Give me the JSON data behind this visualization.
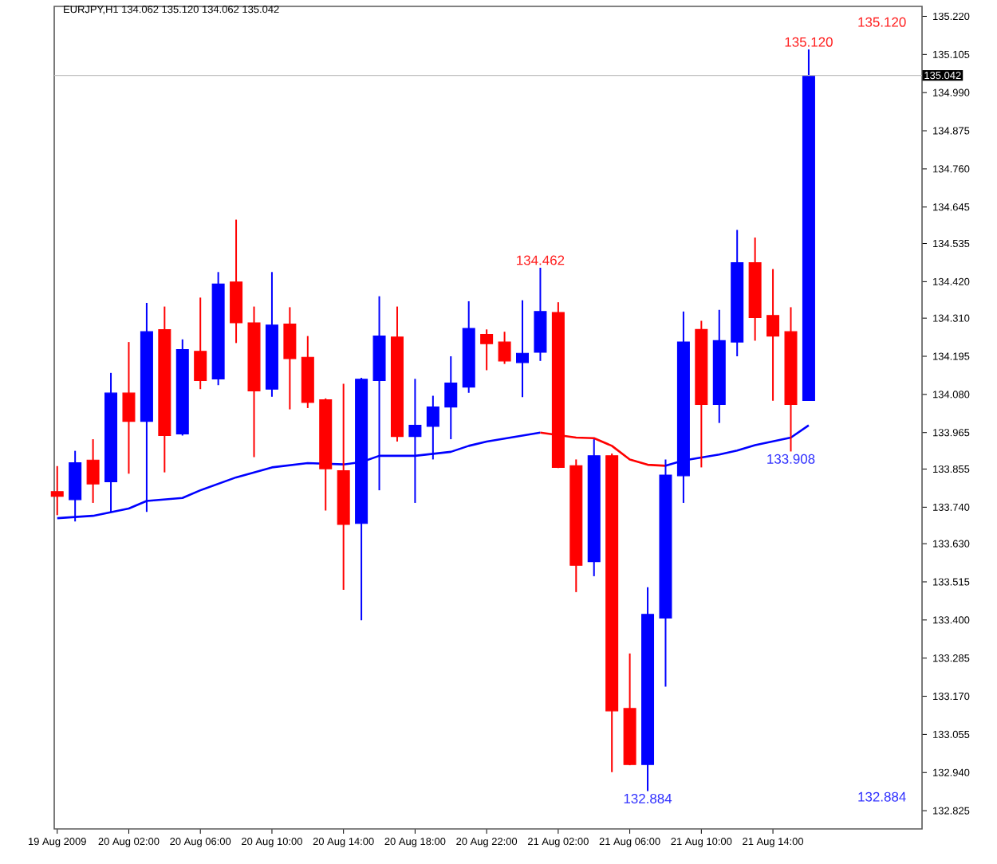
{
  "chart_data": {
    "type": "candlestick",
    "title": "EURJPY,H1  134.062 135.120 134.062 135.042",
    "x": [
      "2009-08-19T22:00",
      "2009-08-19T23:00",
      "2009-08-20T00:00",
      "2009-08-20T01:00",
      "2009-08-20T02:00",
      "2009-08-20T03:00",
      "2009-08-20T04:00",
      "2009-08-20T05:00",
      "2009-08-20T06:00",
      "2009-08-20T07:00",
      "2009-08-20T08:00",
      "2009-08-20T09:00",
      "2009-08-20T10:00",
      "2009-08-20T11:00",
      "2009-08-20T12:00",
      "2009-08-20T13:00",
      "2009-08-20T14:00",
      "2009-08-20T15:00",
      "2009-08-20T16:00",
      "2009-08-20T17:00",
      "2009-08-20T18:00",
      "2009-08-20T19:00",
      "2009-08-20T20:00",
      "2009-08-20T21:00",
      "2009-08-20T22:00",
      "2009-08-20T23:00",
      "2009-08-21T00:00",
      "2009-08-21T01:00",
      "2009-08-21T02:00",
      "2009-08-21T03:00",
      "2009-08-21T04:00",
      "2009-08-21T05:00",
      "2009-08-21T06:00",
      "2009-08-21T07:00",
      "2009-08-21T08:00",
      "2009-08-21T09:00",
      "2009-08-21T10:00",
      "2009-08-21T11:00",
      "2009-08-21T12:00",
      "2009-08-21T13:00",
      "2009-08-21T14:00",
      "2009-08-21T15:00",
      "2009-08-21T16:00"
    ],
    "ohlc": [
      [
        133.787,
        133.864,
        133.716,
        133.773
      ],
      [
        133.763,
        133.91,
        133.697,
        133.874
      ],
      [
        133.882,
        133.945,
        133.753,
        133.81
      ],
      [
        133.817,
        134.145,
        133.726,
        134.084
      ],
      [
        134.084,
        134.238,
        133.841,
        133.999
      ],
      [
        133.999,
        134.356,
        133.726,
        134.269
      ],
      [
        134.275,
        134.345,
        133.845,
        133.956
      ],
      [
        133.961,
        134.246,
        133.956,
        134.215
      ],
      [
        134.21,
        134.372,
        134.096,
        134.122
      ],
      [
        134.127,
        134.449,
        134.108,
        134.413
      ],
      [
        134.419,
        134.607,
        134.235,
        134.296
      ],
      [
        134.296,
        134.345,
        133.891,
        134.091
      ],
      [
        134.096,
        134.449,
        134.073,
        134.289
      ],
      [
        134.292,
        134.343,
        134.035,
        134.188
      ],
      [
        134.192,
        134.256,
        134.039,
        134.056
      ],
      [
        134.064,
        134.068,
        133.73,
        133.856
      ],
      [
        133.85,
        134.112,
        133.491,
        133.688
      ],
      [
        133.691,
        134.13,
        133.399,
        134.126
      ],
      [
        134.122,
        134.376,
        133.791,
        134.256
      ],
      [
        134.253,
        134.345,
        133.938,
        133.953
      ],
      [
        133.953,
        134.127,
        133.753,
        133.987
      ],
      [
        133.984,
        134.076,
        133.884,
        134.042
      ],
      [
        134.042,
        134.195,
        133.945,
        134.114
      ],
      [
        134.102,
        134.361,
        134.085,
        134.279
      ],
      [
        134.261,
        134.276,
        134.153,
        134.233
      ],
      [
        134.238,
        134.269,
        134.172,
        134.181
      ],
      [
        134.176,
        134.364,
        134.072,
        134.204
      ],
      [
        134.207,
        134.462,
        134.181,
        134.33
      ],
      [
        134.327,
        134.358,
        133.858,
        133.86
      ],
      [
        133.865,
        133.884,
        133.484,
        133.565
      ],
      [
        133.576,
        133.945,
        133.532,
        133.895
      ],
      [
        133.895,
        133.902,
        132.941,
        133.126
      ],
      [
        133.133,
        133.299,
        132.962,
        132.964
      ],
      [
        132.964,
        133.499,
        132.884,
        133.417
      ],
      [
        133.406,
        133.884,
        133.199,
        133.837
      ],
      [
        133.835,
        134.33,
        133.753,
        134.238
      ],
      [
        134.276,
        134.302,
        133.86,
        134.05
      ],
      [
        134.05,
        134.335,
        133.994,
        134.242
      ],
      [
        134.238,
        134.576,
        134.195,
        134.477
      ],
      [
        134.477,
        134.553,
        134.242,
        134.312
      ],
      [
        134.318,
        134.458,
        134.061,
        134.256
      ],
      [
        134.269,
        134.343,
        133.908,
        134.05
      ],
      [
        134.062,
        135.12,
        134.062,
        135.042
      ]
    ],
    "colors": [
      "#ff0000",
      "#0000ff",
      "#ff0000",
      "#0000ff",
      "#ff0000",
      "#0000ff",
      "#ff0000",
      "#0000ff",
      "#ff0000",
      "#0000ff",
      "#ff0000",
      "#ff0000",
      "#0000ff",
      "#ff0000",
      "#ff0000",
      "#ff0000",
      "#ff0000",
      "#0000ff",
      "#0000ff",
      "#ff0000",
      "#0000ff",
      "#0000ff",
      "#0000ff",
      "#0000ff",
      "#ff0000",
      "#ff0000",
      "#0000ff",
      "#0000ff",
      "#ff0000",
      "#ff0000",
      "#0000ff",
      "#ff0000",
      "#ff0000",
      "#0000ff",
      "#0000ff",
      "#0000ff",
      "#ff0000",
      "#0000ff",
      "#0000ff",
      "#ff0000",
      "#ff0000",
      "#ff0000",
      "#0000ff"
    ],
    "series": [
      {
        "type": "line",
        "color": "#0000ff",
        "x": [
          "2009-08-19T22:00",
          "2009-08-20T00:00",
          "2009-08-20T02:00",
          "2009-08-20T03:00",
          "2009-08-20T05:00",
          "2009-08-20T06:00",
          "2009-08-20T08:00",
          "2009-08-20T10:00",
          "2009-08-20T12:00",
          "2009-08-20T14:00",
          "2009-08-20T15:00",
          "2009-08-20T16:00",
          "2009-08-20T18:00",
          "2009-08-20T20:00",
          "2009-08-20T21:00",
          "2009-08-20T22:00",
          "2009-08-21T00:00",
          "2009-08-21T01:00",
          "2009-08-21T05:00",
          "2009-08-21T08:00",
          "2009-08-21T09:00",
          "2009-08-21T11:00",
          "2009-08-21T12:00",
          "2009-08-21T13:00",
          "2009-08-21T15:00",
          "2009-08-21T16:00"
        ],
        "values": [
          133.707,
          133.714,
          133.736,
          133.759,
          133.768,
          133.791,
          133.83,
          133.86,
          133.873,
          133.869,
          133.876,
          133.895,
          133.895,
          133.907,
          133.925,
          133.938,
          133.956,
          133.965,
          null,
          133.865,
          133.881,
          133.899,
          133.911,
          133.927,
          133.95,
          133.987
        ]
      },
      {
        "type": "line",
        "color": "#ff0000",
        "x": [
          "2009-08-21T01:00",
          "2009-08-21T03:00",
          "2009-08-21T04:00",
          "2009-08-21T05:00",
          "2009-08-21T06:00",
          "2009-08-21T07:00",
          "2009-08-21T08:00"
        ],
        "values": [
          133.965,
          133.95,
          133.948,
          133.925,
          133.884,
          133.868,
          133.865
        ]
      }
    ],
    "ref_lines": [
      {
        "axis": "y",
        "value": 135.042,
        "label": "135.042",
        "color": "#c0c0c0"
      }
    ],
    "annotations": [
      {
        "text": "134.462",
        "x": "2009-08-21T01:00",
        "y": 134.462
      },
      {
        "text": "135.120",
        "x": "2009-08-21T16:00",
        "y": 135.12
      },
      "135.120",
      {
        "text": "133.908",
        "x": "2009-08-21T15:00",
        "y": 133.908
      },
      {
        "text": "132.884",
        "x": "2009-08-21T07:00",
        "y": 132.884
      },
      "132.884"
    ],
    "xlim": [
      "2009-08-19T21:50",
      "2009-08-21T22:20"
    ],
    "xticks": [
      {
        "value": "2009-08-19T22:00",
        "label": "19 Aug 2009"
      },
      {
        "value": "2009-08-20T02:00",
        "label": "20 Aug 02:00"
      },
      {
        "value": "2009-08-20T06:00",
        "label": "20 Aug 06:00"
      },
      {
        "value": "2009-08-20T10:00",
        "label": "20 Aug 10:00"
      },
      {
        "value": "2009-08-20T14:00",
        "label": "20 Aug 14:00"
      },
      {
        "value": "2009-08-20T18:00",
        "label": "20 Aug 18:00"
      },
      {
        "value": "2009-08-20T22:00",
        "label": "20 Aug 22:00"
      },
      {
        "value": "2009-08-21T02:00",
        "label": "21 Aug 02:00"
      },
      {
        "value": "2009-08-21T06:00",
        "label": "21 Aug 06:00"
      },
      {
        "value": "2009-08-21T10:00",
        "label": "21 Aug 10:00"
      },
      {
        "value": "2009-08-21T14:00",
        "label": "21 Aug 14:00"
      }
    ],
    "ylim": [
      132.77,
      135.25
    ],
    "yticks": [
      {
        "value": 135.22,
        "label": "135.220"
      },
      135.105,
      {
        "value": 134.99,
        "label": "134.990"
      },
      134.875,
      {
        "value": 134.76,
        "label": "134.760"
      },
      134.645,
      134.535,
      {
        "value": 134.42,
        "label": "134.420"
      },
      {
        "value": 134.31,
        "label": "134.310"
      },
      134.195,
      {
        "value": 134.08,
        "label": "134.080"
      },
      133.965,
      133.855,
      {
        "value": 133.74,
        "label": "133.740"
      },
      {
        "value": 133.63,
        "label": "133.630"
      },
      133.515,
      {
        "value": 133.4,
        "label": "133.400"
      },
      133.285,
      {
        "value": 133.17,
        "label": "133.170"
      },
      133.055,
      {
        "value": 132.94,
        "label": "132.940"
      },
      132.825
    ]
  }
}
